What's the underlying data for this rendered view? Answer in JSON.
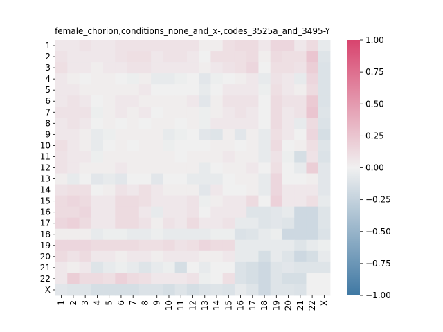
{
  "chart_data": {
    "type": "heatmap",
    "title": "female_chorion,conditions_none_and_x-,codes_3525a_and_3495-Y",
    "xlabel": "",
    "ylabel": "",
    "x_categories": [
      "1",
      "2",
      "3",
      "4",
      "5",
      "6",
      "7",
      "8",
      "9",
      "10",
      "11",
      "12",
      "13",
      "14",
      "15",
      "16",
      "17",
      "18",
      "19",
      "20",
      "21",
      "22",
      "X"
    ],
    "y_categories": [
      "1",
      "2",
      "3",
      "4",
      "5",
      "6",
      "7",
      "8",
      "9",
      "10",
      "11",
      "12",
      "13",
      "14",
      "15",
      "16",
      "17",
      "18",
      "19",
      "20",
      "21",
      "22",
      "X"
    ],
    "value_range": [
      -1.0,
      1.0
    ],
    "colorbar": {
      "ticks": [
        1.0,
        0.75,
        0.5,
        0.25,
        0.0,
        -0.25,
        -0.5,
        -0.75,
        -1.0
      ],
      "tick_labels": [
        "1.00",
        "0.75",
        "0.50",
        "0.25",
        "0.00",
        "−0.25",
        "−0.50",
        "−0.75",
        "−1.00"
      ],
      "low_color": "#3f78a3",
      "mid_color": "#f0f0f0",
      "high_color": "#d8446e"
    },
    "matrix": [
      [
        0.05,
        0.05,
        0.08,
        0.05,
        0.05,
        0.08,
        0.08,
        0.08,
        0.08,
        0.08,
        0.08,
        0.08,
        0.02,
        0.02,
        0.1,
        0.12,
        0.12,
        0.05,
        0.15,
        0.15,
        0.05,
        0.12,
        -0.05
      ],
      [
        0.08,
        0.05,
        0.05,
        0.05,
        0.05,
        0.08,
        0.1,
        0.1,
        0.05,
        0.08,
        0.08,
        0.05,
        0.0,
        0.1,
        0.1,
        0.1,
        0.12,
        0.02,
        0.12,
        0.1,
        0.1,
        0.25,
        -0.1
      ],
      [
        0.1,
        0.05,
        0.05,
        0.02,
        0.05,
        0.05,
        0.08,
        0.08,
        0.05,
        0.05,
        0.05,
        0.05,
        0.02,
        0.05,
        0.08,
        0.1,
        0.15,
        0.0,
        0.1,
        0.1,
        0.08,
        0.2,
        -0.12
      ],
      [
        0.05,
        0.02,
        0.0,
        0.02,
        0.02,
        0.0,
        -0.02,
        0.02,
        -0.05,
        -0.05,
        -0.02,
        0.0,
        -0.08,
        -0.02,
        0.0,
        0.02,
        0.05,
        -0.05,
        0.08,
        0.05,
        -0.05,
        0.15,
        -0.12
      ],
      [
        0.05,
        0.05,
        0.02,
        0.02,
        0.02,
        0.02,
        0.02,
        0.05,
        0.0,
        0.0,
        0.0,
        0.0,
        -0.05,
        0.0,
        0.05,
        0.05,
        0.05,
        -0.02,
        0.1,
        0.05,
        0.02,
        0.12,
        -0.12
      ],
      [
        0.05,
        0.08,
        0.05,
        0.0,
        0.02,
        0.05,
        0.05,
        0.02,
        0.02,
        0.02,
        0.02,
        0.05,
        -0.08,
        0.02,
        0.08,
        0.08,
        0.08,
        0.0,
        0.12,
        0.08,
        0.08,
        0.22,
        -0.12
      ],
      [
        0.08,
        0.08,
        0.08,
        -0.02,
        0.02,
        0.05,
        0.02,
        0.05,
        0.0,
        0.02,
        0.02,
        0.02,
        -0.02,
        0.02,
        0.05,
        0.08,
        0.05,
        0.0,
        0.12,
        0.05,
        0.08,
        0.25,
        -0.1
      ],
      [
        0.05,
        0.08,
        0.05,
        0.0,
        0.02,
        0.0,
        0.02,
        0.0,
        0.02,
        0.02,
        0.0,
        0.02,
        -0.02,
        0.05,
        0.05,
        0.05,
        0.05,
        0.0,
        0.12,
        0.05,
        -0.05,
        0.12,
        -0.12
      ],
      [
        0.05,
        0.05,
        0.02,
        -0.05,
        -0.02,
        0.02,
        0.02,
        0.02,
        0.02,
        -0.05,
        -0.02,
        0.0,
        -0.08,
        -0.1,
        0.02,
        -0.08,
        0.02,
        -0.05,
        0.1,
        0.05,
        0.0,
        0.15,
        -0.15
      ],
      [
        0.1,
        0.05,
        0.02,
        -0.05,
        0.0,
        0.02,
        0.0,
        0.02,
        0.02,
        -0.02,
        0.0,
        0.0,
        0.0,
        0.02,
        0.02,
        0.0,
        0.02,
        -0.05,
        0.12,
        0.0,
        0.02,
        0.1,
        -0.1
      ],
      [
        0.08,
        0.05,
        0.05,
        -0.02,
        0.02,
        0.02,
        0.02,
        0.02,
        0.02,
        0.02,
        0.0,
        0.02,
        0.02,
        0.02,
        0.05,
        0.02,
        0.02,
        -0.05,
        0.08,
        -0.02,
        -0.15,
        0.08,
        -0.12
      ],
      [
        0.08,
        0.05,
        0.02,
        0.02,
        0.02,
        0.05,
        0.02,
        0.02,
        0.02,
        0.02,
        0.02,
        0.02,
        -0.05,
        0.0,
        0.02,
        0.02,
        0.05,
        0.0,
        0.1,
        0.0,
        -0.05,
        0.2,
        -0.08
      ],
      [
        0.02,
        -0.05,
        0.0,
        -0.08,
        -0.05,
        -0.08,
        0.0,
        0.0,
        -0.08,
        0.0,
        0.0,
        -0.05,
        -0.05,
        -0.05,
        0.0,
        0.02,
        0.02,
        -0.05,
        0.15,
        0.0,
        0.0,
        0.02,
        -0.08
      ],
      [
        0.08,
        0.1,
        0.1,
        0.0,
        0.02,
        0.08,
        0.05,
        0.1,
        0.05,
        0.02,
        0.02,
        0.02,
        -0.08,
        0.05,
        0.0,
        0.0,
        0.02,
        -0.05,
        0.15,
        0.05,
        0.05,
        0.05,
        -0.08
      ],
      [
        0.12,
        0.15,
        0.12,
        0.05,
        0.05,
        0.12,
        0.12,
        0.1,
        0.05,
        0.05,
        0.05,
        0.08,
        -0.02,
        0.02,
        0.05,
        0.05,
        0.12,
        0.0,
        0.18,
        0.05,
        0.05,
        0.1,
        -0.05
      ],
      [
        0.12,
        0.12,
        0.15,
        0.05,
        0.05,
        0.12,
        0.12,
        0.05,
        -0.05,
        0.05,
        0.05,
        0.08,
        0.0,
        0.05,
        0.05,
        0.05,
        -0.1,
        -0.1,
        -0.08,
        -0.05,
        -0.2,
        -0.2,
        -0.1
      ],
      [
        0.15,
        0.18,
        0.12,
        0.05,
        0.05,
        0.12,
        0.12,
        0.08,
        0.02,
        0.08,
        0.05,
        0.12,
        0.05,
        0.05,
        0.08,
        -0.05,
        -0.05,
        -0.1,
        -0.08,
        -0.1,
        -0.2,
        -0.2,
        -0.1
      ],
      [
        0.02,
        0.02,
        0.02,
        -0.05,
        -0.02,
        -0.02,
        -0.05,
        -0.05,
        -0.02,
        -0.05,
        -0.05,
        -0.05,
        -0.05,
        -0.02,
        -0.02,
        -0.12,
        -0.1,
        -0.05,
        -0.02,
        -0.2,
        -0.2,
        -0.2,
        -0.12
      ],
      [
        0.15,
        0.15,
        0.15,
        0.12,
        0.12,
        0.12,
        0.12,
        0.1,
        0.1,
        0.12,
        0.08,
        0.1,
        0.15,
        0.12,
        0.12,
        -0.05,
        -0.05,
        -0.05,
        -0.05,
        -0.05,
        -0.1,
        -0.05,
        -0.02
      ],
      [
        0.12,
        0.08,
        0.12,
        0.05,
        0.05,
        0.02,
        0.05,
        0.05,
        0.02,
        0.05,
        0.05,
        0.05,
        0.02,
        0.02,
        0.05,
        -0.05,
        -0.05,
        -0.15,
        -0.05,
        -0.1,
        -0.2,
        -0.15,
        -0.05
      ],
      [
        0.05,
        0.02,
        0.05,
        -0.1,
        -0.05,
        -0.02,
        -0.05,
        -0.1,
        -0.05,
        -0.02,
        -0.15,
        0.0,
        -0.05,
        0.0,
        0.0,
        -0.12,
        -0.15,
        -0.2,
        -0.1,
        -0.08,
        -0.1,
        -0.1,
        -0.1
      ],
      [
        0.05,
        0.2,
        0.12,
        0.12,
        0.1,
        0.18,
        0.12,
        0.1,
        0.05,
        0.05,
        0.05,
        0.08,
        -0.02,
        0.0,
        0.1,
        -0.12,
        -0.15,
        -0.2,
        -0.1,
        -0.15,
        -0.15,
        0.0,
        0.0
      ],
      [
        -0.08,
        -0.1,
        -0.1,
        -0.15,
        -0.15,
        -0.15,
        -0.15,
        -0.12,
        -0.12,
        -0.15,
        -0.1,
        -0.15,
        -0.12,
        -0.1,
        -0.12,
        -0.05,
        -0.1,
        -0.2,
        -0.1,
        -0.1,
        -0.12,
        0.0,
        0.0
      ]
    ]
  }
}
